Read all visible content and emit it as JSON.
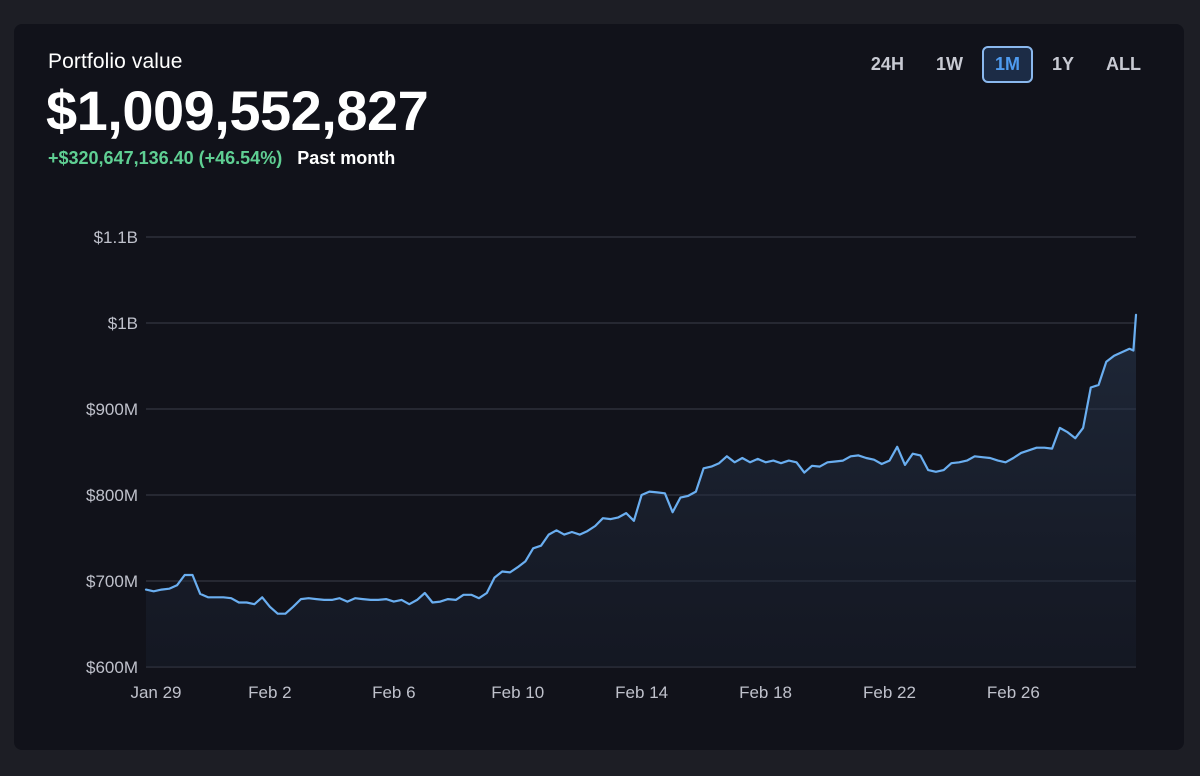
{
  "header": {
    "label": "Portfolio value",
    "value": "$1,009,552,827",
    "change": "+$320,647,136.40 (+46.54%)",
    "period": "Past month"
  },
  "range_tabs": [
    {
      "label": "24H",
      "active": false
    },
    {
      "label": "1W",
      "active": false
    },
    {
      "label": "1M",
      "active": true
    },
    {
      "label": "1Y",
      "active": false
    },
    {
      "label": "ALL",
      "active": false
    }
  ],
  "colors": {
    "line": "#6aaef0",
    "positive": "#5fcf93",
    "active_tab": "#4e9bf0",
    "background": "#11121a"
  },
  "chart_data": {
    "type": "area",
    "title": "",
    "xlabel": "",
    "ylabel": "",
    "grid": true,
    "ylim": [
      600,
      1100
    ],
    "y_unit": "$M",
    "y_ticks": [
      {
        "value": 1100,
        "label": "$1.1B"
      },
      {
        "value": 1000,
        "label": "$1B"
      },
      {
        "value": 900,
        "label": "$900M"
      },
      {
        "value": 800,
        "label": "$800M"
      },
      {
        "value": 700,
        "label": "$700M"
      },
      {
        "value": 600,
        "label": "$600M"
      }
    ],
    "x_range": [
      "Jan 29",
      "Feb 29"
    ],
    "x_ticks": [
      {
        "date": "Jan 29",
        "label": "Jan 29"
      },
      {
        "date": "Feb 2",
        "label": "Feb 2"
      },
      {
        "date": "Feb 6",
        "label": "Feb 6"
      },
      {
        "date": "Feb 10",
        "label": "Feb 10"
      },
      {
        "date": "Feb 14",
        "label": "Feb 14"
      },
      {
        "date": "Feb 18",
        "label": "Feb 18"
      },
      {
        "date": "Feb 22",
        "label": "Feb 22"
      },
      {
        "date": "Feb 26",
        "label": "Feb 26"
      }
    ],
    "series": [
      {
        "values": [
          [
            "Jan 29 00:00",
            690
          ],
          [
            "Jan 29 06:00",
            688
          ],
          [
            "Jan 29 12:00",
            690
          ],
          [
            "Jan 29 18:00",
            691
          ],
          [
            "Jan 30 00:00",
            695
          ],
          [
            "Jan 30 06:00",
            707
          ],
          [
            "Jan 30 12:00",
            707
          ],
          [
            "Jan 30 18:00",
            685
          ],
          [
            "Jan 31 00:00",
            681
          ],
          [
            "Jan 31 06:00",
            681
          ],
          [
            "Jan 31 12:00",
            681
          ],
          [
            "Jan 31 18:00",
            680
          ],
          [
            "Feb 1 00:00",
            675
          ],
          [
            "Feb 1 06:00",
            675
          ],
          [
            "Feb 1 12:00",
            673
          ],
          [
            "Feb 1 18:00",
            681
          ],
          [
            "Feb 2 00:00",
            670
          ],
          [
            "Feb 2 06:00",
            662
          ],
          [
            "Feb 2 12:00",
            662
          ],
          [
            "Feb 2 18:00",
            670
          ],
          [
            "Feb 3 00:00",
            679
          ],
          [
            "Feb 3 06:00",
            680
          ],
          [
            "Feb 3 12:00",
            679
          ],
          [
            "Feb 3 18:00",
            678
          ],
          [
            "Feb 4 00:00",
            678
          ],
          [
            "Feb 4 06:00",
            680
          ],
          [
            "Feb 4 12:00",
            676
          ],
          [
            "Feb 4 18:00",
            680
          ],
          [
            "Feb 5 00:00",
            679
          ],
          [
            "Feb 5 06:00",
            678
          ],
          [
            "Feb 5 12:00",
            678
          ],
          [
            "Feb 5 18:00",
            679
          ],
          [
            "Feb 6 00:00",
            676
          ],
          [
            "Feb 6 06:00",
            678
          ],
          [
            "Feb 6 12:00",
            673
          ],
          [
            "Feb 6 18:00",
            678
          ],
          [
            "Feb 7 00:00",
            686
          ],
          [
            "Feb 7 06:00",
            675
          ],
          [
            "Feb 7 12:00",
            676
          ],
          [
            "Feb 7 18:00",
            679
          ],
          [
            "Feb 8 00:00",
            678
          ],
          [
            "Feb 8 06:00",
            684
          ],
          [
            "Feb 8 12:00",
            684
          ],
          [
            "Feb 8 18:00",
            680
          ],
          [
            "Feb 9 00:00",
            686
          ],
          [
            "Feb 9 06:00",
            704
          ],
          [
            "Feb 9 12:00",
            711
          ],
          [
            "Feb 9 18:00",
            710
          ],
          [
            "Feb 10 00:00",
            716
          ],
          [
            "Feb 10 06:00",
            723
          ],
          [
            "Feb 10 12:00",
            738
          ],
          [
            "Feb 10 18:00",
            741
          ],
          [
            "Feb 11 00:00",
            754
          ],
          [
            "Feb 11 06:00",
            759
          ],
          [
            "Feb 11 12:00",
            754
          ],
          [
            "Feb 11 18:00",
            757
          ],
          [
            "Feb 12 00:00",
            754
          ],
          [
            "Feb 12 06:00",
            758
          ],
          [
            "Feb 12 12:00",
            764
          ],
          [
            "Feb 12 18:00",
            773
          ],
          [
            "Feb 13 00:00",
            772
          ],
          [
            "Feb 13 06:00",
            774
          ],
          [
            "Feb 13 12:00",
            779
          ],
          [
            "Feb 13 18:00",
            770
          ],
          [
            "Feb 14 00:00",
            800
          ],
          [
            "Feb 14 06:00",
            804
          ],
          [
            "Feb 14 12:00",
            803
          ],
          [
            "Feb 14 18:00",
            802
          ],
          [
            "Feb 15 00:00",
            780
          ],
          [
            "Feb 15 06:00",
            797
          ],
          [
            "Feb 15 12:00",
            799
          ],
          [
            "Feb 15 18:00",
            804
          ],
          [
            "Feb 16 00:00",
            831
          ],
          [
            "Feb 16 06:00",
            833
          ],
          [
            "Feb 16 12:00",
            837
          ],
          [
            "Feb 16 18:00",
            845
          ],
          [
            "Feb 17 00:00",
            838
          ],
          [
            "Feb 17 06:00",
            843
          ],
          [
            "Feb 17 12:00",
            838
          ],
          [
            "Feb 17 18:00",
            842
          ],
          [
            "Feb 18 00:00",
            838
          ],
          [
            "Feb 18 06:00",
            840
          ],
          [
            "Feb 18 12:00",
            837
          ],
          [
            "Feb 18 18:00",
            840
          ],
          [
            "Feb 19 00:00",
            838
          ],
          [
            "Feb 19 06:00",
            826
          ],
          [
            "Feb 19 12:00",
            834
          ],
          [
            "Feb 19 18:00",
            833
          ],
          [
            "Feb 20 00:00",
            838
          ],
          [
            "Feb 20 06:00",
            839
          ],
          [
            "Feb 20 12:00",
            840
          ],
          [
            "Feb 20 18:00",
            845
          ],
          [
            "Feb 21 00:00",
            846
          ],
          [
            "Feb 21 06:00",
            843
          ],
          [
            "Feb 21 12:00",
            841
          ],
          [
            "Feb 21 18:00",
            836
          ],
          [
            "Feb 22 00:00",
            840
          ],
          [
            "Feb 22 06:00",
            856
          ],
          [
            "Feb 22 12:00",
            835
          ],
          [
            "Feb 22 18:00",
            848
          ],
          [
            "Feb 23 00:00",
            846
          ],
          [
            "Feb 23 06:00",
            829
          ],
          [
            "Feb 23 12:00",
            827
          ],
          [
            "Feb 23 18:00",
            829
          ],
          [
            "Feb 24 00:00",
            837
          ],
          [
            "Feb 24 06:00",
            838
          ],
          [
            "Feb 24 12:00",
            840
          ],
          [
            "Feb 24 18:00",
            845
          ],
          [
            "Feb 25 00:00",
            844
          ],
          [
            "Feb 25 06:00",
            843
          ],
          [
            "Feb 25 12:00",
            840
          ],
          [
            "Feb 25 18:00",
            838
          ],
          [
            "Feb 26 00:00",
            843
          ],
          [
            "Feb 26 06:00",
            849
          ],
          [
            "Feb 26 12:00",
            852
          ],
          [
            "Feb 26 18:00",
            855
          ],
          [
            "Feb 27 00:00",
            855
          ],
          [
            "Feb 27 06:00",
            854
          ],
          [
            "Feb 27 12:00",
            878
          ],
          [
            "Feb 27 18:00",
            873
          ],
          [
            "Feb 28 00:00",
            866
          ],
          [
            "Feb 28 06:00",
            878
          ],
          [
            "Feb 28 12:00",
            925
          ],
          [
            "Feb 28 18:00",
            928
          ],
          [
            "Feb 29 00:00",
            955
          ],
          [
            "Feb 29 06:00",
            962
          ],
          [
            "Feb 29 12:00",
            966
          ],
          [
            "Feb 29 18:00",
            970
          ],
          [
            "Feb 29 21:00",
            968
          ],
          [
            "Feb 29 23:00",
            1009.55
          ]
        ]
      }
    ]
  }
}
